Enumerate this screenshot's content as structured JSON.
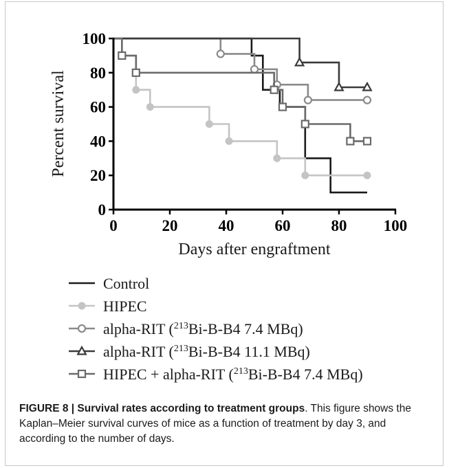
{
  "chart_data": {
    "type": "line",
    "subtype": "kaplan-meier step",
    "xlabel": "Days after engraftment",
    "ylabel": "Percent survival",
    "xlim": [
      0,
      100
    ],
    "ylim": [
      0,
      100
    ],
    "xticks": [
      "0",
      "20",
      "40",
      "60",
      "80",
      "100"
    ],
    "yticks": [
      "0",
      "20",
      "40",
      "60",
      "80",
      "100"
    ],
    "grid": false,
    "legend_position": "bottom",
    "series": [
      {
        "name": "Control",
        "label_main": "Control",
        "color": "#1a1a1a",
        "marker": "none",
        "steps": [
          [
            0,
            100
          ],
          [
            49,
            100
          ],
          [
            49,
            90
          ],
          [
            53,
            90
          ],
          [
            53,
            70
          ],
          [
            59,
            70
          ],
          [
            59,
            60
          ],
          [
            68,
            60
          ],
          [
            68,
            30
          ],
          [
            77,
            30
          ],
          [
            77,
            10
          ],
          [
            90,
            10
          ]
        ],
        "marks": []
      },
      {
        "name": "HIPEC",
        "label_main": "HIPEC",
        "color": "#c4c4c4",
        "marker": "filled-circle",
        "steps": [
          [
            0,
            100
          ],
          [
            3,
            100
          ],
          [
            3,
            90
          ],
          [
            8,
            90
          ],
          [
            8,
            70
          ],
          [
            13,
            70
          ],
          [
            13,
            60
          ],
          [
            34,
            60
          ],
          [
            34,
            50
          ],
          [
            41,
            50
          ],
          [
            41,
            40
          ],
          [
            58,
            40
          ],
          [
            58,
            30
          ],
          [
            68,
            30
          ],
          [
            68,
            20
          ],
          [
            90,
            20
          ]
        ],
        "marks": [
          [
            3,
            90
          ],
          [
            8,
            70
          ],
          [
            13,
            60
          ],
          [
            34,
            50
          ],
          [
            41,
            40
          ],
          [
            58,
            30
          ],
          [
            68,
            20
          ],
          [
            90,
            20
          ]
        ]
      },
      {
        "name": "alpha-RIT (213Bi-B-B4 7.4 MBq)",
        "label_main": "alpha-RIT (",
        "label_sup": "213",
        "label_rest": "Bi-B-B4 7.4 MBq)",
        "color": "#8a8a8a",
        "marker": "open-circle",
        "steps": [
          [
            0,
            100
          ],
          [
            38,
            100
          ],
          [
            38,
            91
          ],
          [
            50,
            91
          ],
          [
            50,
            82
          ],
          [
            58,
            82
          ],
          [
            58,
            73
          ],
          [
            69,
            73
          ],
          [
            69,
            64
          ],
          [
            90,
            64
          ]
        ],
        "marks": [
          [
            38,
            91
          ],
          [
            50,
            82
          ],
          [
            58,
            73
          ],
          [
            69,
            64
          ],
          [
            90,
            64
          ]
        ]
      },
      {
        "name": "alpha-RIT (213Bi-B-B4 11.1 MBq)",
        "label_main": "alpha-RIT (",
        "label_sup": "213",
        "label_rest": "Bi-B-B4 11.1 MBq)",
        "color": "#3a3a3a",
        "marker": "open-triangle",
        "steps": [
          [
            0,
            100
          ],
          [
            66,
            100
          ],
          [
            66,
            86
          ],
          [
            80,
            86
          ],
          [
            80,
            71.5
          ],
          [
            90,
            71.5
          ]
        ],
        "marks": [
          [
            66,
            86
          ],
          [
            80,
            71.5
          ],
          [
            90,
            71.5
          ]
        ]
      },
      {
        "name": "HIPEC + alpha-RIT (213Bi-B-B4 7.4 MBq)",
        "label_main": "HIPEC + alpha-RIT (",
        "label_sup": "213",
        "label_rest": "Bi-B-B4 7.4 MBq)",
        "color": "#6a6a6a",
        "marker": "open-square",
        "steps": [
          [
            0,
            100
          ],
          [
            3,
            100
          ],
          [
            3,
            90
          ],
          [
            8,
            90
          ],
          [
            8,
            80
          ],
          [
            57,
            80
          ],
          [
            57,
            70
          ],
          [
            60,
            70
          ],
          [
            60,
            60
          ],
          [
            68,
            60
          ],
          [
            68,
            50
          ],
          [
            84,
            50
          ],
          [
            84,
            40
          ],
          [
            90,
            40
          ]
        ],
        "marks": [
          [
            3,
            90
          ],
          [
            8,
            80
          ],
          [
            57,
            70
          ],
          [
            60,
            60
          ],
          [
            68,
            50
          ],
          [
            84,
            40
          ],
          [
            90,
            40
          ]
        ]
      }
    ]
  },
  "caption": {
    "label": "FIGURE 8 | Survival rates according to treatment groups",
    "text": ". This figure shows the Kaplan–Meier survival curves of mice as a function of treatment by day 3, and according to the number of days."
  }
}
